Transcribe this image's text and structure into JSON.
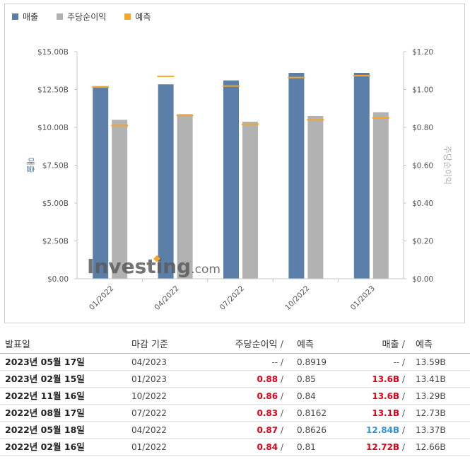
{
  "legend": [
    {
      "label": "매출",
      "color": "#5b7fa8"
    },
    {
      "label": "주당순이익",
      "color": "#b2b2b2"
    },
    {
      "label": "예측",
      "color": "#f5a623"
    }
  ],
  "watermark": {
    "brand": "Investing",
    "suffix": ".com"
  },
  "chart_data": {
    "type": "bar",
    "categories": [
      "01/2022",
      "04/2022",
      "07/2022",
      "10/2022",
      "01/2023"
    ],
    "series": [
      {
        "name": "매출",
        "axis": "left",
        "values": [
          12.72,
          12.84,
          13.1,
          13.6,
          13.6
        ],
        "forecast": [
          12.66,
          13.37,
          12.73,
          13.29,
          13.41
        ]
      },
      {
        "name": "주당순이익",
        "axis": "right",
        "values": [
          0.84,
          0.87,
          0.83,
          0.86,
          0.88
        ],
        "forecast": [
          0.81,
          0.8626,
          0.8162,
          0.84,
          0.85
        ]
      }
    ],
    "ylabel_left": "매출",
    "ylabel_right": "주당순이익",
    "ylim_left": [
      0,
      15
    ],
    "ylim_right": [
      0,
      1.2
    ],
    "yticks_left": [
      "$0.00",
      "$2.50B",
      "$5.00B",
      "$7.50B",
      "$10.00B",
      "$12.50B",
      "$15.00B"
    ],
    "yticks_right": [
      "$0.00",
      "$0.20",
      "$0.40",
      "$0.60",
      "$0.80",
      "$1.00",
      "$1.20"
    ],
    "legend_position": "top-left",
    "grid": false
  },
  "table": {
    "headers": {
      "date": "발표일",
      "period": "마감 기준",
      "eps": "주당순이익",
      "eps_sep": "/",
      "eps_forecast": "예측",
      "revenue": "매출",
      "revenue_sep": "/",
      "revenue_forecast": "예측"
    },
    "rows": [
      {
        "date": "2023년 05월 17일",
        "period": "04/2023",
        "eps": "--",
        "eps_color": "dash",
        "eps_forecast": "0.8919",
        "revenue": "--",
        "revenue_color": "dash",
        "revenue_forecast": "13.59B"
      },
      {
        "date": "2023년 02월 15일",
        "period": "01/2023",
        "eps": "0.88",
        "eps_color": "red",
        "eps_forecast": "0.85",
        "revenue": "13.6B",
        "revenue_color": "red",
        "revenue_forecast": "13.41B"
      },
      {
        "date": "2022년 11월 16일",
        "period": "10/2022",
        "eps": "0.86",
        "eps_color": "red",
        "eps_forecast": "0.84",
        "revenue": "13.6B",
        "revenue_color": "red",
        "revenue_forecast": "13.29B"
      },
      {
        "date": "2022년 08월 17일",
        "period": "07/2022",
        "eps": "0.83",
        "eps_color": "red",
        "eps_forecast": "0.8162",
        "revenue": "13.1B",
        "revenue_color": "red",
        "revenue_forecast": "12.73B"
      },
      {
        "date": "2022년 05월 18일",
        "period": "04/2022",
        "eps": "0.87",
        "eps_color": "red",
        "eps_forecast": "0.8626",
        "revenue": "12.84B",
        "revenue_color": "blue",
        "revenue_forecast": "13.37B"
      },
      {
        "date": "2022년 02월 16일",
        "period": "01/2022",
        "eps": "0.84",
        "eps_color": "red",
        "eps_forecast": "0.81",
        "revenue": "12.72B",
        "revenue_color": "red",
        "revenue_forecast": "12.66B"
      }
    ]
  }
}
